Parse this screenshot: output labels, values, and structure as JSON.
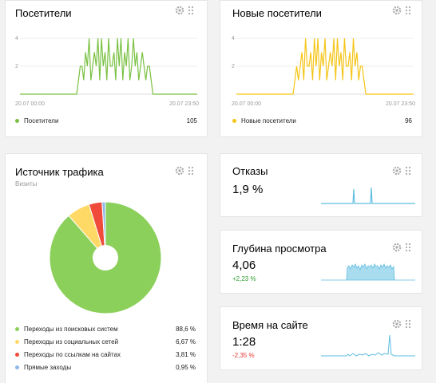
{
  "colors": {
    "visitors": "#7ac143",
    "new_visitors": "#f5c518",
    "spark": "#5fbde0",
    "positive": "#2e9e2e",
    "negative": "#e53935",
    "pie": [
      "#8cd05c",
      "#ffd966",
      "#f04a3a",
      "#8fb8e8"
    ]
  },
  "visitors": {
    "title": "Посетители",
    "y_ticks": [
      "4",
      "2"
    ],
    "x_start": "20.07 00:00",
    "x_end": "20.07 23:50",
    "legend_label": "Посетители",
    "legend_value": "105"
  },
  "new_visitors": {
    "title": "Новые посетители",
    "y_ticks": [
      "4",
      "2"
    ],
    "x_start": "20.07 00:00",
    "x_end": "20.07 23:50",
    "legend_label": "Новые посетители",
    "legend_value": "96"
  },
  "traffic": {
    "title": "Источник трафика",
    "subtitle": "Визиты",
    "items": [
      {
        "label": "Переходы из поисковых систем",
        "value": "88,6 %"
      },
      {
        "label": "Переходы из социальных сетей",
        "value": "6,67 %"
      },
      {
        "label": "Переходы по ссылкам на сайтах",
        "value": "3,81 %"
      },
      {
        "label": "Прямые заходы",
        "value": "0,95 %"
      }
    ]
  },
  "bounce": {
    "title": "Отказы",
    "value": "1,9 %"
  },
  "depth": {
    "title": "Глубина просмотра",
    "value": "4,06",
    "delta": "+2,23 %"
  },
  "time": {
    "title": "Время на сайте",
    "value": "1:28",
    "delta": "-2,35 %"
  },
  "chart_data": [
    {
      "type": "line",
      "series": [
        {
          "name": "Посетители",
          "values": [
            0,
            0,
            0,
            0,
            0,
            0,
            0,
            0,
            0,
            0,
            0,
            0,
            0,
            0,
            0,
            0,
            0,
            0,
            0,
            0,
            0,
            0,
            0,
            0,
            0,
            0,
            0,
            0,
            0,
            0,
            0,
            0,
            0,
            1,
            2,
            2,
            1,
            3,
            2,
            4,
            1,
            2,
            3,
            2,
            4,
            1,
            4,
            2,
            3,
            1,
            4,
            2,
            2,
            3,
            1,
            4,
            2,
            4,
            1,
            3,
            2,
            4,
            1,
            2,
            4,
            2,
            3,
            1,
            2,
            3,
            2,
            1,
            2,
            2,
            1,
            0,
            0,
            0,
            0,
            0,
            0,
            0,
            0,
            0,
            0,
            0,
            0,
            0,
            0,
            0,
            0,
            0,
            0,
            0,
            0,
            0,
            0,
            0,
            0,
            0,
            0
          ]
        }
      ],
      "y_ticks": [
        2,
        4
      ],
      "x_range": [
        "20.07 00:00",
        "20.07 23:50"
      ]
    },
    {
      "type": "line",
      "series": [
        {
          "name": "Новые посетители",
          "values": [
            0,
            0,
            0,
            0,
            0,
            0,
            0,
            0,
            0,
            0,
            0,
            0,
            0,
            0,
            0,
            0,
            0,
            0,
            0,
            0,
            0,
            0,
            0,
            0,
            0,
            0,
            0,
            0,
            0,
            0,
            0,
            0,
            0,
            1,
            2,
            1,
            2,
            3,
            1,
            4,
            2,
            2,
            3,
            1,
            4,
            2,
            4,
            1,
            3,
            2,
            4,
            1,
            2,
            3,
            2,
            4,
            1,
            4,
            2,
            3,
            1,
            4,
            2,
            2,
            3,
            1,
            4,
            2,
            3,
            1,
            2,
            2,
            1,
            0,
            0,
            0,
            0,
            0,
            0,
            0,
            0,
            0,
            0,
            0,
            0,
            0,
            0,
            0,
            0,
            0,
            0,
            0,
            0,
            0,
            0,
            0,
            0,
            0,
            0,
            0,
            0
          ]
        }
      ],
      "y_ticks": [
        2,
        4
      ],
      "x_range": [
        "20.07 00:00",
        "20.07 23:50"
      ]
    },
    {
      "type": "pie",
      "categories": [
        "Переходы из поисковых систем",
        "Переходы из социальных сетей",
        "Переходы по ссылкам на сайтах",
        "Прямые заходы"
      ],
      "values": [
        88.6,
        6.67,
        3.81,
        0.95
      ]
    }
  ]
}
